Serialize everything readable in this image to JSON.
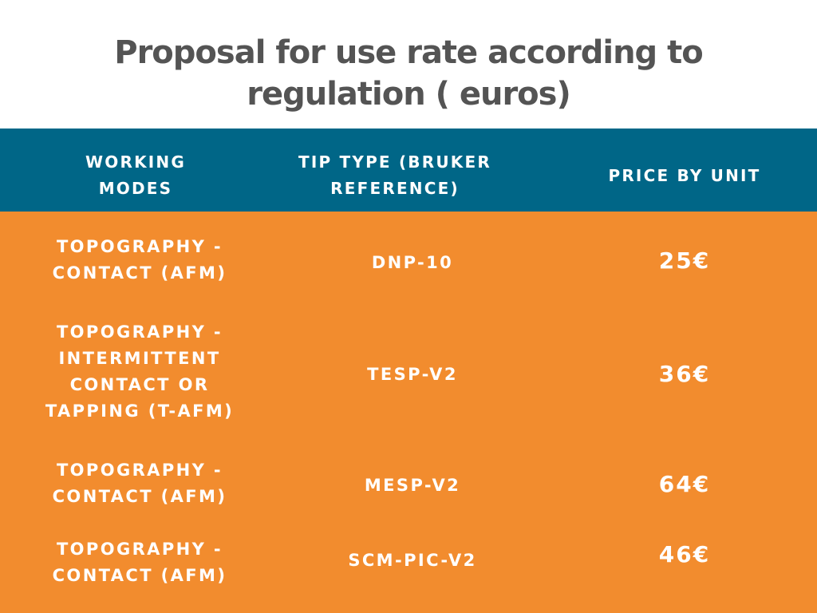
{
  "title": {
    "line1": "Proposal for use rate according to",
    "line2": "regulation ( euros)"
  },
  "colors": {
    "title": "#545454",
    "header_background": "#006687",
    "body_background": "#f28c2e",
    "cell_text": "#ffffff"
  },
  "table": {
    "headers": [
      {
        "lines": [
          "WORKING",
          "MODES"
        ]
      },
      {
        "lines": [
          "TIP TYPE (BRUKER",
          "REFERENCE)"
        ]
      },
      {
        "lines": [
          "PRICE BY UNIT"
        ]
      }
    ],
    "rows": [
      {
        "mode": [
          "TOPOGRAPHY -",
          "CONTACT (AFM)"
        ],
        "tip": "DNP-10",
        "price": "25€"
      },
      {
        "mode": [
          "TOPOGRAPHY -",
          "INTERMITTENT",
          "CONTACT OR",
          "TAPPING (T-AFM)"
        ],
        "tip": "TESP-V2",
        "price": "36€"
      },
      {
        "mode": [
          "TOPOGRAPHY -",
          "CONTACT (AFM)"
        ],
        "tip": "MESP-V2",
        "price": "64€"
      },
      {
        "mode": [
          "TOPOGRAPHY -",
          "CONTACT (AFM)"
        ],
        "tip": "SCM-PIC-V2",
        "price": "46€"
      }
    ]
  }
}
